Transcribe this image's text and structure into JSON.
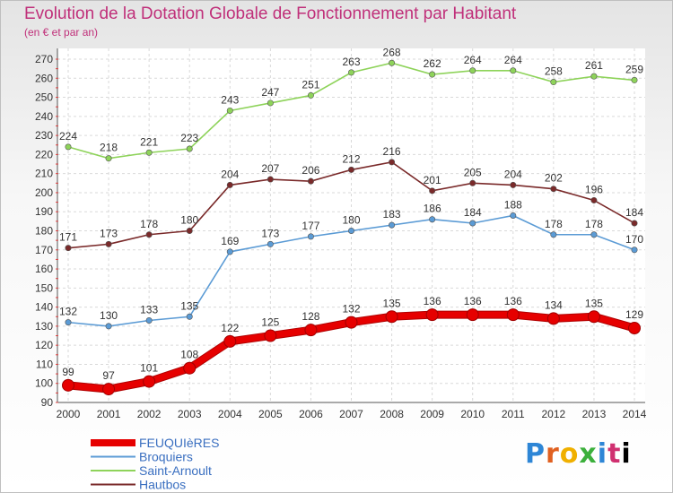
{
  "header": {
    "title": "Evolution de la Dotation Globale de Fonctionnement par Habitant",
    "subtitle": "(en € et par an)"
  },
  "logo": {
    "text": "Proxiti",
    "letters": [
      "P",
      "r",
      "o",
      "x",
      "i",
      "t",
      "i"
    ]
  },
  "chart_data": {
    "type": "line",
    "title": "Evolution de la Dotation Globale de Fonctionnement par Habitant",
    "subtitle": "(en € et par an)",
    "xlabel": "",
    "ylabel": "",
    "ylim": [
      90,
      270
    ],
    "y_ticks": [
      90,
      100,
      110,
      120,
      130,
      140,
      150,
      160,
      170,
      180,
      190,
      200,
      210,
      220,
      230,
      240,
      250,
      260,
      270
    ],
    "grid": true,
    "legend_position": "bottom-left",
    "x": [
      "2000",
      "2001",
      "2002",
      "2003",
      "2004",
      "2005",
      "2006",
      "2007",
      "2008",
      "2009",
      "2010",
      "2011",
      "2012",
      "2013",
      "2014"
    ],
    "series": [
      {
        "name": "FEUQUIèRES",
        "color": "#e60000",
        "emphasis": true,
        "values": [
          99,
          97,
          101,
          108,
          122,
          125,
          128,
          132,
          135,
          136,
          136,
          136,
          134,
          135,
          129
        ]
      },
      {
        "name": "Broquiers",
        "color": "#5b9bd5",
        "emphasis": false,
        "values": [
          132,
          130,
          133,
          135,
          169,
          173,
          177,
          180,
          183,
          186,
          184,
          188,
          178,
          178,
          170
        ]
      },
      {
        "name": "Saint-Arnoult",
        "color": "#8ed35a",
        "emphasis": false,
        "values": [
          224,
          218,
          221,
          223,
          243,
          247,
          251,
          263,
          268,
          262,
          264,
          264,
          258,
          261,
          259
        ]
      },
      {
        "name": "Hautbos",
        "color": "#7a2a2a",
        "emphasis": false,
        "values": [
          171,
          173,
          178,
          180,
          204,
          207,
          206,
          212,
          216,
          201,
          205,
          204,
          202,
          196,
          184
        ]
      }
    ]
  }
}
